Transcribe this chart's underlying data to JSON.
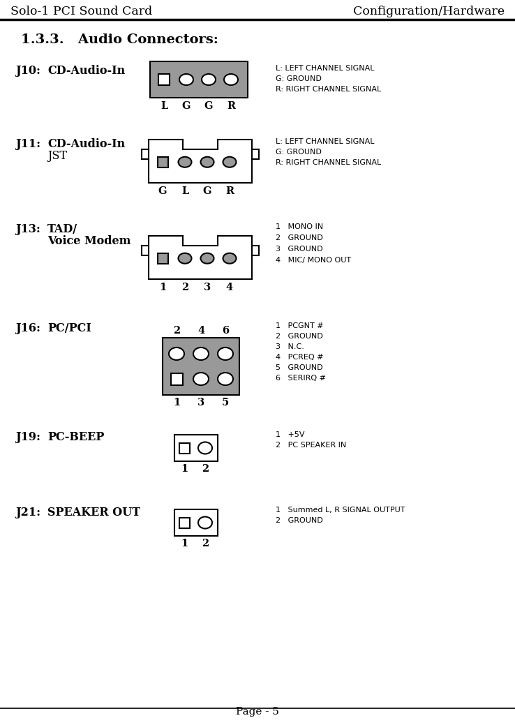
{
  "title_left": "Solo-1 PCI Sound Card",
  "title_right": "Configuration/Hardware",
  "section_title": "1.3.3.   Audio Connectors:",
  "page_label": "Page - 5",
  "bg_color": "#ffffff",
  "gray_fill": "#999999",
  "connectors": [
    {
      "id": "J10",
      "name": "CD-Audio-In",
      "name2": null,
      "type": "flat_rect",
      "labels_below": [
        "L",
        "G",
        "G",
        "R"
      ],
      "descriptions": [
        "L: LEFT CHANNEL SIGNAL",
        "G: GROUND",
        "R: RIGHT CHANNEL SIGNAL"
      ]
    },
    {
      "id": "J11",
      "name": "CD-Audio-In",
      "name2": "JST",
      "type": "jst",
      "labels_below": [
        "G",
        "L",
        "G",
        "R"
      ],
      "descriptions": [
        "L: LEFT CHANNEL SIGNAL",
        "G: GROUND",
        "R: RIGHT CHANNEL SIGNAL"
      ]
    },
    {
      "id": "J13",
      "name": "TAD/",
      "name2": "Voice Modem",
      "type": "jst",
      "labels_below": [
        "1",
        "2",
        "3",
        "4"
      ],
      "descriptions": [
        "1   MONO IN",
        "2   GROUND",
        "3   GROUND",
        "4   MIC/ MONO OUT"
      ]
    },
    {
      "id": "J16",
      "name": "PC/PCI",
      "name2": null,
      "type": "grid2x3",
      "labels_top": [
        "2",
        "4",
        "6"
      ],
      "labels_below": [
        "1",
        "3",
        "5"
      ],
      "descriptions": [
        "1   PCGNT #",
        "2   GROUND",
        "3   N.C.",
        "4   PCREQ #",
        "5   GROUND",
        "6   SERIRQ #"
      ]
    },
    {
      "id": "J19",
      "name": "PC-BEEP",
      "name2": null,
      "type": "small2",
      "labels_below": [
        "1",
        "2"
      ],
      "descriptions": [
        "1   +5V",
        "2   PC SPEAKER IN"
      ]
    },
    {
      "id": "J21",
      "name": "SPEAKER OUT",
      "name2": null,
      "type": "small2",
      "labels_below": [
        "1",
        "2"
      ],
      "descriptions": [
        "1   Summed L, R SIGNAL OUTPUT",
        "2   GROUND"
      ]
    }
  ]
}
